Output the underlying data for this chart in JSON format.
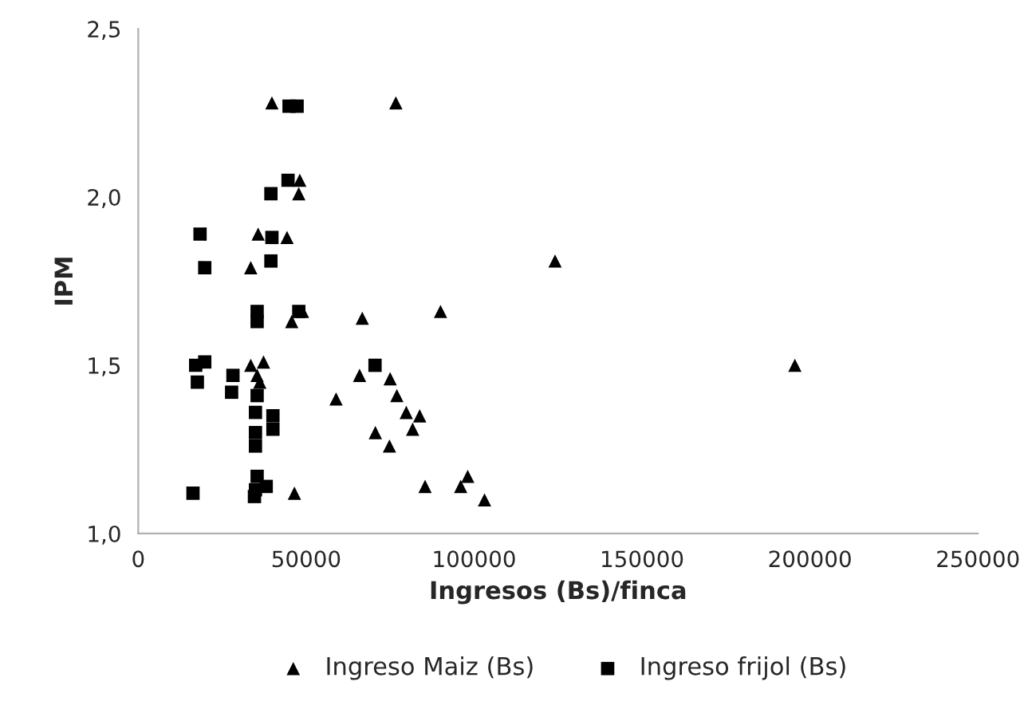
{
  "chart_data": {
    "type": "scatter",
    "xlabel": "Ingresos (Bs)/finca",
    "ylabel": "IPM",
    "xlim": [
      0,
      250000
    ],
    "xticks": [
      0,
      50000,
      100000,
      150000,
      200000,
      250000
    ],
    "ylim": [
      1.0,
      2.5
    ],
    "yticks": [
      {
        "value": 1.0,
        "label": "1,0"
      },
      {
        "value": 1.5,
        "label": "1,5"
      },
      {
        "value": 2.0,
        "label": "2,0"
      },
      {
        "value": 2.5,
        "label": "2,5"
      }
    ],
    "grid": false,
    "legend": "bottom",
    "series": [
      {
        "name": "Ingreso Maiz (Bs)",
        "color": "#000000",
        "marker": "triangle",
        "x": [
          39800,
          76700,
          48100,
          47800,
          35700,
          44300,
          33500,
          45700,
          48900,
          66700,
          124100,
          90000,
          195500,
          33500,
          37300,
          35400,
          36200,
          58900,
          65900,
          75000,
          77000,
          79800,
          83800,
          81700,
          70600,
          74800,
          85400,
          96000,
          98100,
          103100,
          46500
        ],
        "values": [
          2.28,
          2.28,
          2.05,
          2.01,
          1.89,
          1.88,
          1.79,
          1.63,
          1.66,
          1.64,
          1.81,
          1.66,
          1.5,
          1.5,
          1.51,
          1.47,
          1.45,
          1.4,
          1.47,
          1.46,
          1.41,
          1.36,
          1.35,
          1.31,
          1.3,
          1.26,
          1.14,
          1.14,
          1.17,
          1.1,
          1.12
        ]
      },
      {
        "name": "Ingreso frijol (Bs)",
        "color": "#000000",
        "marker": "square",
        "x": [
          44900,
          47300,
          44600,
          39500,
          18400,
          39800,
          19800,
          39500,
          35400,
          35400,
          47800,
          17100,
          19800,
          17600,
          28200,
          27800,
          35400,
          34900,
          40100,
          40100,
          34900,
          34900,
          35400,
          38100,
          34600,
          16300,
          34900,
          70500
        ],
        "values": [
          2.27,
          2.27,
          2.05,
          2.01,
          1.89,
          1.88,
          1.79,
          1.81,
          1.66,
          1.63,
          1.66,
          1.5,
          1.51,
          1.45,
          1.47,
          1.42,
          1.41,
          1.36,
          1.35,
          1.31,
          1.3,
          1.26,
          1.17,
          1.14,
          1.11,
          1.12,
          1.13,
          1.5
        ]
      }
    ]
  }
}
